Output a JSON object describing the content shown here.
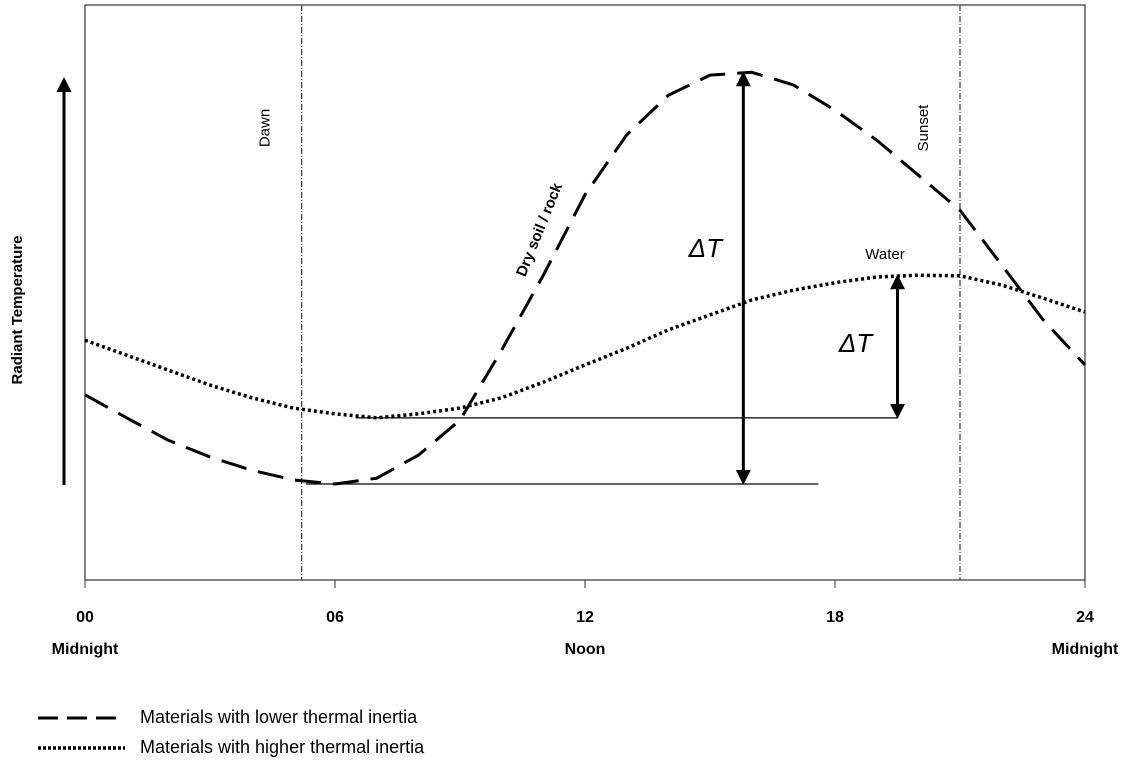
{
  "chart_data": {
    "type": "line",
    "ylabel": "Radiant Temperature",
    "x": [
      0,
      1,
      2,
      3,
      4,
      5,
      6,
      7,
      8,
      9,
      10,
      11,
      12,
      13,
      14,
      15,
      16,
      17,
      18,
      19,
      20,
      21,
      22,
      23,
      24
    ],
    "xlim": [
      0,
      24
    ],
    "ylim": [
      0,
      100
    ],
    "xticks": [
      {
        "value": 0,
        "label": "00"
      },
      {
        "value": 6,
        "label": "06"
      },
      12,
      18,
      24
    ],
    "period_labels": [
      {
        "x": 0,
        "label": "Midnight"
      },
      {
        "x": 12,
        "label": "Noon"
      },
      {
        "x": 24,
        "label": "Midnight"
      }
    ],
    "series": [
      {
        "name": "Materials with lower thermal inertia",
        "color": "#000000",
        "style": "dashed",
        "label": "Dry soil / rock",
        "values": [
          32.2,
          28.2,
          24.3,
          21.4,
          19.1,
          17.4,
          16.7,
          17.7,
          21.7,
          27.8,
          40,
          53,
          67,
          77.4,
          84.3,
          87.8,
          88.3,
          86.1,
          81.7,
          76.5,
          70.4,
          64.3,
          54.8,
          45.2,
          37.4
        ]
      },
      {
        "name": "Materials with higher thermal inertia",
        "color": "#000000",
        "style": "dotted",
        "label": "Water",
        "values": [
          41.7,
          39.1,
          36.5,
          33.9,
          31.7,
          29.9,
          28.9,
          28.2,
          28.9,
          29.9,
          31.7,
          34.4,
          37.4,
          40.3,
          43.5,
          46.1,
          48.7,
          50.4,
          51.7,
          52.7,
          53,
          52.9,
          51.3,
          49,
          46.6
        ]
      }
    ],
    "events": [
      {
        "label": "Dawn",
        "x": 5.2
      },
      {
        "label": "Sunset",
        "x": 21
      }
    ],
    "delta_arrows": [
      {
        "label": "ΔT",
        "x": 15.8,
        "from": 16.7,
        "to": 88.3,
        "baseline_x": [
          5.3,
          17.6
        ]
      },
      {
        "label": "ΔT",
        "x": 19.5,
        "from": 28.2,
        "to": 53,
        "baseline_x": [
          6.5,
          19.5
        ]
      }
    ]
  }
}
